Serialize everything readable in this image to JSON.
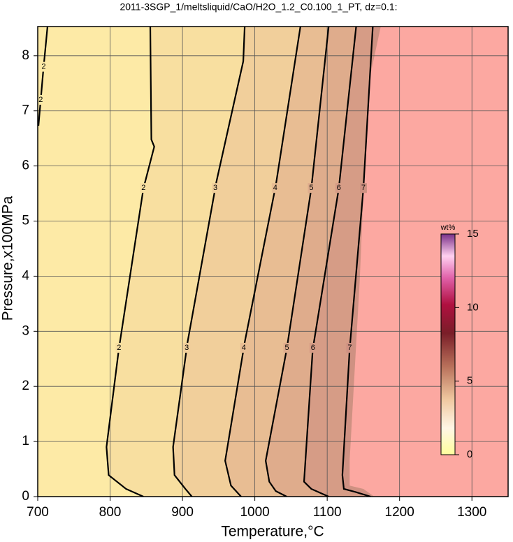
{
  "chart_data": {
    "type": "contour",
    "title": "2011-3SGP_1/meltsliquid/CaO/H2O_1.2_C0.100_1_PT, dz=0.1:",
    "x_label": "Temperature,°C",
    "y_label": "Pressure,x100MPa",
    "xlim": [
      700,
      1350
    ],
    "ylim": [
      0,
      8.53
    ],
    "xticks": [
      700,
      800,
      900,
      1000,
      1100,
      1200,
      1300
    ],
    "yticks": [
      0,
      1,
      2,
      3,
      4,
      5,
      6,
      7,
      8
    ],
    "grid": true,
    "background": "#fdeaa6",
    "contours": [
      {
        "level": 2,
        "T": [
          713.5,
          707.7,
          701
        ],
        "P": [
          8.53,
          7.74,
          6.73
        ]
      },
      {
        "level": 2,
        "fill": "#f8dfa0",
        "T": [
          855.5,
          857,
          861,
          846,
          812,
          795,
          798,
          822,
          846
        ],
        "P": [
          8.53,
          6.48,
          6.35,
          5.59,
          2.67,
          0.9,
          0.39,
          0.14,
          0
        ]
      },
      {
        "level": 3,
        "fill": "#f1cf9b",
        "T": [
          986,
          984,
          947,
          907,
          887,
          889,
          904,
          913
        ],
        "P": [
          8.53,
          7.9,
          5.72,
          2.8,
          0.9,
          0.39,
          0.14,
          0
        ]
      },
      {
        "level": 4,
        "fill": "#e8bd93",
        "T": [
          1063,
          1029,
          986,
          959,
          967,
          981
        ],
        "P": [
          8.53,
          5.65,
          2.8,
          0.65,
          0.2,
          0
        ]
      },
      {
        "level": 5,
        "fill": "#dfac8c",
        "T": [
          1102,
          1078,
          1044,
          1015,
          1020,
          1029,
          1044
        ],
        "P": [
          8.53,
          5.59,
          2.67,
          0.65,
          0.27,
          0.1,
          0
        ]
      },
      {
        "level": 6,
        "fill": "#d69c86",
        "T": [
          1140,
          1116,
          1080,
          1068,
          1078,
          1102
        ],
        "P": [
          8.53,
          5.59,
          2.67,
          0.27,
          0.14,
          0
        ]
      },
      {
        "level": 7,
        "fill": "#cf9182",
        "T": [
          1163,
          1150,
          1131,
          1121,
          1123,
          1140,
          1160
        ],
        "P": [
          8.53,
          5.59,
          2.67,
          0.39,
          0.14,
          0.08,
          0
        ]
      }
    ],
    "saturated_region": {
      "fill": "#fca8a1",
      "T": [
        1174,
        1157,
        1152,
        1145,
        1131,
        1131,
        1150,
        1165
      ],
      "P": [
        8.53,
        7.49,
        6.1,
        3.94,
        0.65,
        0.2,
        0.14,
        0
      ]
    },
    "colorbar": {
      "label": "wt%",
      "lim": [
        0,
        15
      ],
      "ticks": [
        0,
        5,
        10,
        15
      ]
    }
  }
}
